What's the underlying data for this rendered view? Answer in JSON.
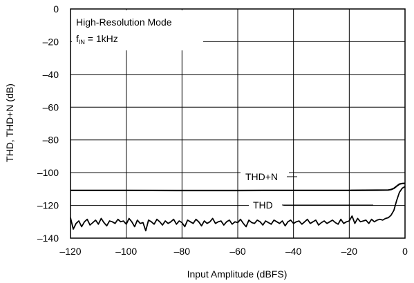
{
  "chart_data": {
    "type": "line",
    "title": "",
    "xlabel": "Input Amplitude (dBFS)",
    "ylabel": "THD, THD+N (dB)",
    "xlim": [
      -120,
      0
    ],
    "ylim": [
      -140,
      0
    ],
    "x_ticks": [
      -120,
      -100,
      -80,
      -60,
      -40,
      -20,
      0
    ],
    "y_ticks": [
      0,
      -20,
      -40,
      -60,
      -80,
      -100,
      -120,
      -140
    ],
    "x_tick_labels": [
      "–120",
      "–100",
      "–80",
      "–60",
      "–40",
      "–20",
      "0"
    ],
    "y_tick_labels": [
      "0",
      "–20",
      "–40",
      "–60",
      "–80",
      "–100",
      "–120",
      "–140"
    ],
    "grid": true,
    "annotations": {
      "mode": "High-Resolution Mode",
      "fin_main": "f",
      "fin_sub": "IN",
      "fin_rest": " = 1kHz"
    },
    "series": [
      {
        "name": "THD+N",
        "x": [
          -120,
          -100,
          -80,
          -60,
          -40,
          -20,
          -10,
          -6,
          -5,
          -4,
          -3,
          -2,
          -1,
          0
        ],
        "y": [
          -110.8,
          -110.8,
          -110.9,
          -110.9,
          -110.8,
          -110.8,
          -110.7,
          -110.6,
          -110.3,
          -109.6,
          -108.3,
          -107.0,
          -106.6,
          -106.5
        ]
      },
      {
        "name": "THD",
        "x": [
          -120,
          -119,
          -118,
          -117,
          -116,
          -115,
          -114,
          -113,
          -112,
          -111,
          -110,
          -109,
          -108,
          -107,
          -106,
          -105,
          -104,
          -103,
          -102,
          -101,
          -100,
          -99,
          -98,
          -97,
          -96,
          -95,
          -94,
          -93,
          -92,
          -91,
          -90,
          -89,
          -88,
          -87,
          -86,
          -85,
          -84,
          -83,
          -82,
          -81,
          -80,
          -79,
          -78,
          -77,
          -76,
          -75,
          -74,
          -73,
          -72,
          -71,
          -70,
          -69,
          -68,
          -67,
          -66,
          -65,
          -64,
          -63,
          -62,
          -61,
          -60,
          -59,
          -58,
          -57,
          -56,
          -55,
          -54,
          -53,
          -52,
          -51,
          -50,
          -49,
          -48,
          -47,
          -46,
          -45,
          -44,
          -43,
          -42,
          -41,
          -40,
          -39,
          -38,
          -37,
          -36,
          -35,
          -34,
          -33,
          -32,
          -31,
          -30,
          -29,
          -28,
          -27,
          -26,
          -25,
          -24,
          -23,
          -22,
          -21,
          -20,
          -19,
          -18,
          -17,
          -16,
          -15,
          -14,
          -13,
          -12,
          -11,
          -10,
          -9,
          -8,
          -7,
          -6,
          -5,
          -4,
          -3,
          -2,
          -1,
          0
        ],
        "y": [
          -127.5,
          -134.5,
          -131,
          -129.5,
          -133,
          -130,
          -128.5,
          -132,
          -130.5,
          -129,
          -131.5,
          -128,
          -130.5,
          -132.5,
          -129.5,
          -130,
          -131,
          -128.5,
          -130,
          -129.5,
          -131.5,
          -128,
          -130,
          -133,
          -129,
          -131,
          -130.5,
          -135.5,
          -129,
          -130,
          -131.5,
          -128.5,
          -130,
          -132,
          -129.5,
          -131,
          -130,
          -128.5,
          -131.5,
          -129.5,
          -130.5,
          -133,
          -129,
          -130,
          -131,
          -128.5,
          -130,
          -132.5,
          -129.5,
          -131,
          -130,
          -128,
          -131,
          -130,
          -129.5,
          -132,
          -130,
          -129,
          -131.5,
          -130,
          -130.5,
          -128.5,
          -131,
          -133,
          -129,
          -130.5,
          -131,
          -129,
          -130,
          -132,
          -129.5,
          -130.5,
          -131.5,
          -129,
          -130,
          -131,
          -129.5,
          -132.5,
          -130,
          -129,
          -131,
          -130,
          -129.5,
          -131.5,
          -130,
          -128.5,
          -131,
          -130,
          -129,
          -132,
          -130.5,
          -129.5,
          -131,
          -130,
          -129,
          -130.5,
          -131.5,
          -128.5,
          -131,
          -130,
          -129.5,
          -126.5,
          -131,
          -128,
          -130,
          -129.5,
          -129,
          -131,
          -128.5,
          -130,
          -129,
          -128.5,
          -129,
          -128,
          -127.5,
          -126,
          -123,
          -117,
          -112,
          -109.5,
          -108.5
        ]
      }
    ],
    "series_labels": [
      "THD+N",
      "THD"
    ]
  }
}
